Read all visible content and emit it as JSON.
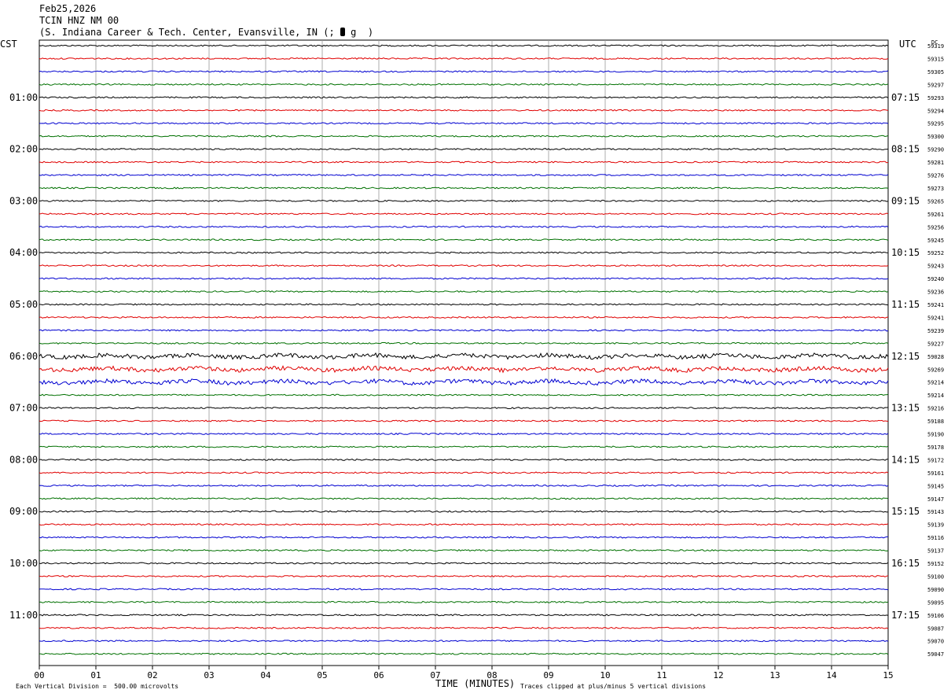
{
  "header": {
    "date": "Feb25,2026",
    "station": "TCIN HNZ NM 00",
    "location_prefix": "(S. Indiana Career & Tech. Center, Evansville, IN (;",
    "location_suffix": "g  )"
  },
  "labels": {
    "left_tz": "CST",
    "right_tz": "UTC",
    "dc": "DC",
    "xlabel": "TIME (MINUTES)",
    "scale_note": "Each Vertical Division =  500.00 microvolts",
    "clip_note": "Traces clipped at plus/minus 5 vertical divisions"
  },
  "chart_data": {
    "type": "line",
    "title": "TCIN HNZ NM 00",
    "xlabel": "TIME (MINUTES)",
    "xlim": [
      0,
      15
    ],
    "x_ticks": [
      "00",
      "01",
      "02",
      "03",
      "04",
      "05",
      "06",
      "07",
      "08",
      "09",
      "10",
      "11",
      "12",
      "13",
      "14",
      "15"
    ],
    "trace_colors": [
      "#000000",
      "#e00000",
      "#0000d0",
      "#007000"
    ],
    "left_hour_labels": [
      "01:00",
      "02:00",
      "03:00",
      "04:00",
      "05:00",
      "06:00",
      "07:00",
      "08:00",
      "09:00",
      "10:00",
      "11:00"
    ],
    "right_hour_labels": [
      "07:15",
      "08:15",
      "09:15",
      "10:15",
      "11:15",
      "12:15",
      "13:15",
      "14:15",
      "15:15",
      "16:15",
      "17:15"
    ],
    "dc_offsets": [
      59319,
      59315,
      59305,
      59297,
      59293,
      59294,
      59295,
      59300,
      59290,
      59281,
      59276,
      59273,
      59265,
      59261,
      59256,
      59245,
      59252,
      59243,
      59240,
      59236,
      59241,
      59241,
      59239,
      59227,
      59028,
      59269,
      59214,
      59214,
      59216,
      59188,
      59190,
      59178,
      59172,
      59161,
      59145,
      59147,
      59143,
      59139,
      59116,
      59137,
      59152,
      59100,
      59090,
      59095,
      59106,
      59087,
      59070,
      59047
    ]
  }
}
